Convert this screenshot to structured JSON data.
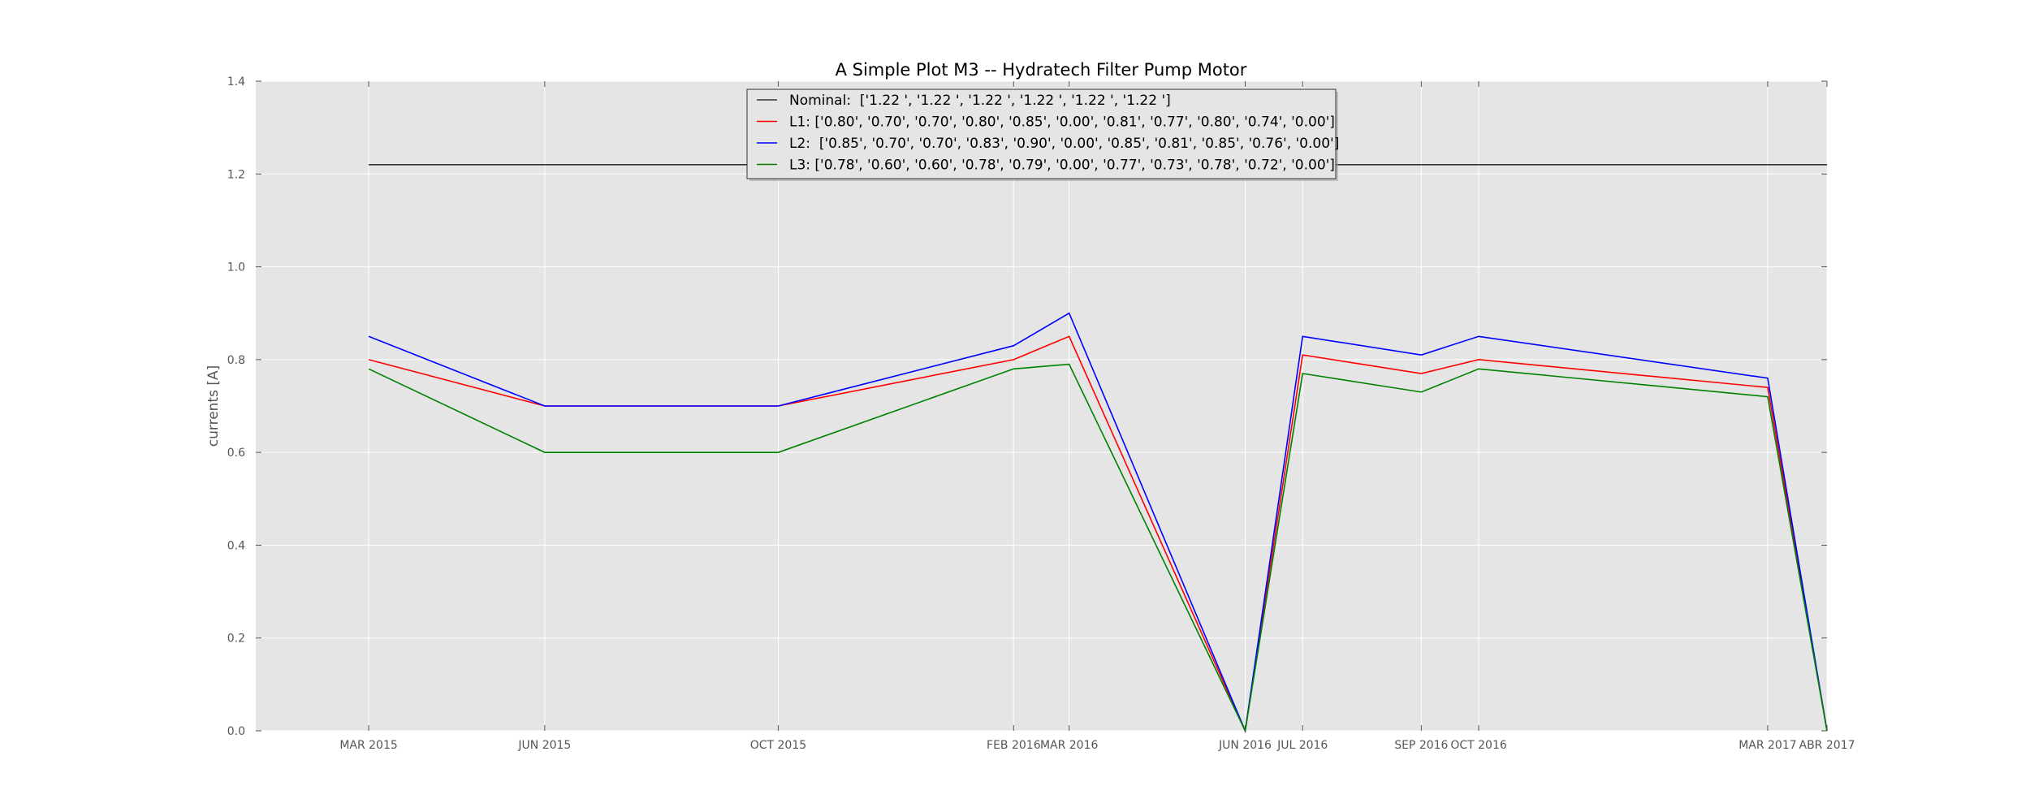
{
  "chart_data": {
    "type": "line",
    "title": "A Simple Plot M3 -- Hydratech Filter Pump Motor",
    "xlabel": "",
    "ylabel": "currents [A]",
    "ylim": [
      0,
      1.4
    ],
    "yticks": [
      "0.0",
      "0.2",
      "0.4",
      "0.6",
      "0.8",
      "1.0",
      "1.2",
      "1.4"
    ],
    "xlim": [
      "2015-01-01",
      "2017-04-01"
    ],
    "grid": true,
    "legend_position": "top-center",
    "x": [
      "2015-03-01",
      "2015-06-01",
      "2015-10-01",
      "2016-02-01",
      "2016-03-01",
      "2016-06-01",
      "2016-07-01",
      "2016-09-01",
      "2016-10-01",
      "2017-03-01",
      "2017-04-01"
    ],
    "xtick_labels": [
      "MAR 2015",
      "JUN 2015",
      "OCT 2015",
      "FEB 2016",
      "MAR 2016",
      "JUN 2016",
      "JUL 2016",
      "SEP 2016",
      "OCT 2016",
      "MAR 2017",
      "ABR 2017"
    ],
    "series": [
      {
        "name": "Nominal:  ['1.22 ', '1.22 ', '1.22 ', '1.22 ', '1.22 ', '1.22 ']",
        "color": "#333333",
        "x": [
          "2015-03-01",
          "2017-04-01"
        ],
        "values": [
          1.22,
          1.22
        ]
      },
      {
        "name": "L1: ['0.80', '0.70', '0.70', '0.80', '0.85', '0.00', '0.81', '0.77', '0.80', '0.74', '0.00']",
        "color": "#ff0000",
        "values": [
          0.8,
          0.7,
          0.7,
          0.8,
          0.85,
          0.0,
          0.81,
          0.77,
          0.8,
          0.74,
          0.0
        ]
      },
      {
        "name": "L2:  ['0.85', '0.70', '0.70', '0.83', '0.90', '0.00', '0.85', '0.81', '0.85', '0.76', '0.00']",
        "color": "#0000ff",
        "values": [
          0.85,
          0.7,
          0.7,
          0.83,
          0.9,
          0.0,
          0.85,
          0.81,
          0.85,
          0.76,
          0.0
        ]
      },
      {
        "name": "L3: ['0.78', '0.60', '0.60', '0.78', '0.79', '0.00', '0.77', '0.73', '0.78', '0.72', '0.00']",
        "color": "#008000",
        "values": [
          0.78,
          0.6,
          0.6,
          0.78,
          0.79,
          0.0,
          0.77,
          0.73,
          0.78,
          0.72,
          0.0
        ]
      }
    ],
    "colors": {
      "plot_background": "#e5e5e5",
      "grid": "#ffffff",
      "legend_background": "#e5e5e5"
    }
  }
}
